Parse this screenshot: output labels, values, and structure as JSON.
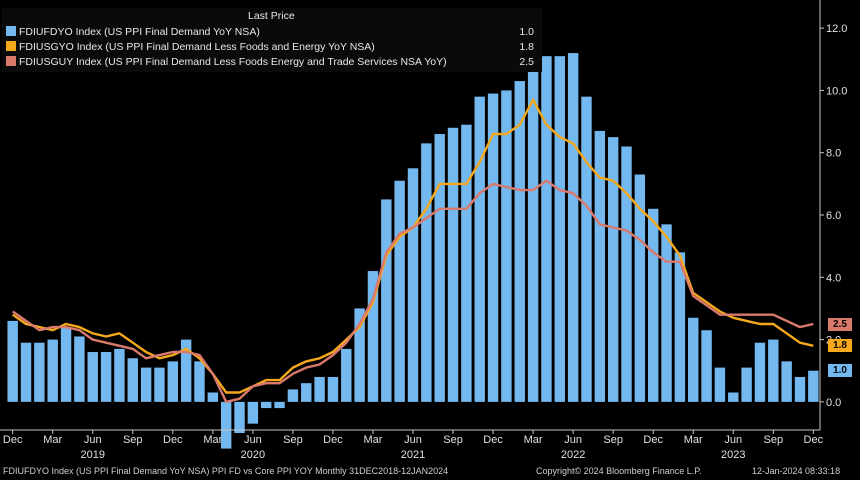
{
  "legend": {
    "header": "Last Price",
    "rows": [
      {
        "label": "FDIUFDYO Index (US PPI Final Demand YoY NSA)",
        "value": "1.0",
        "color": "#74b8f0"
      },
      {
        "label": "FDIUSGYO Index (US PPI Final Demand Less Foods and Energy YoY NSA)",
        "value": "1.8",
        "color": "#f5a81c"
      },
      {
        "label": "FDIUSGUY Index (US PPI Final Demand Less Foods Energy and Trade Services NSA YoY)",
        "value": "2.5",
        "color": "#d97a6c"
      }
    ]
  },
  "tags": [
    {
      "text": "2.5",
      "value": 2.5,
      "bg": "#d97a6c",
      "fg": "#000000"
    },
    {
      "text": "1.8",
      "value": 1.8,
      "bg": "#f5a81c",
      "fg": "#000000"
    },
    {
      "text": "1.0",
      "value": 1.0,
      "bg": "#74b8f0",
      "fg": "#000000"
    }
  ],
  "footer": {
    "left": "FDIUFDYO Index (US PPI Final Demand YoY NSA) PPI FD vs Core PPI YOY  Monthly 31DEC2018-12JAN2024",
    "center": "Copyright© 2024 Bloomberg Finance L.P.",
    "right": "12-Jan-2024 08:33:18"
  },
  "chart_data": {
    "type": "bar+line",
    "ylim": [
      -1.0,
      13.0
    ],
    "yticks": [
      "0.0",
      "2.0",
      "4.0",
      "6.0",
      "8.0",
      "10.0",
      "12.0"
    ],
    "ytick_values": [
      0,
      2,
      4,
      6,
      8,
      10,
      12
    ],
    "month_labels": [
      {
        "i": 0,
        "text": "Dec"
      },
      {
        "i": 3,
        "text": "Mar"
      },
      {
        "i": 6,
        "text": "Jun"
      },
      {
        "i": 9,
        "text": "Sep"
      },
      {
        "i": 12,
        "text": "Dec"
      },
      {
        "i": 15,
        "text": "Mar"
      },
      {
        "i": 18,
        "text": "Jun"
      },
      {
        "i": 21,
        "text": "Sep"
      },
      {
        "i": 24,
        "text": "Dec"
      },
      {
        "i": 27,
        "text": "Mar"
      },
      {
        "i": 30,
        "text": "Jun"
      },
      {
        "i": 33,
        "text": "Sep"
      },
      {
        "i": 36,
        "text": "Dec"
      },
      {
        "i": 39,
        "text": "Mar"
      },
      {
        "i": 42,
        "text": "Jun"
      },
      {
        "i": 45,
        "text": "Sep"
      },
      {
        "i": 48,
        "text": "Dec"
      },
      {
        "i": 51,
        "text": "Mar"
      },
      {
        "i": 54,
        "text": "Jun"
      },
      {
        "i": 57,
        "text": "Sep"
      },
      {
        "i": 60,
        "text": "Dec"
      }
    ],
    "year_labels": [
      {
        "i": 6,
        "text": "2019"
      },
      {
        "i": 18,
        "text": "2020"
      },
      {
        "i": 30,
        "text": "2021"
      },
      {
        "i": 42,
        "text": "2022"
      },
      {
        "i": 54,
        "text": "2023"
      }
    ],
    "series": [
      {
        "name": "FDIUFDYO Index (US PPI Final Demand YoY NSA)",
        "kind": "bar",
        "color": "#74b8f0",
        "values": [
          2.6,
          1.9,
          1.9,
          2.0,
          2.4,
          2.1,
          1.6,
          1.6,
          1.7,
          1.4,
          1.1,
          1.1,
          1.3,
          2.0,
          1.3,
          0.3,
          -1.5,
          -1.0,
          -0.7,
          -0.2,
          -0.2,
          0.4,
          0.6,
          0.8,
          0.8,
          1.7,
          3.0,
          4.2,
          6.5,
          7.1,
          7.5,
          8.3,
          8.6,
          8.8,
          8.9,
          9.8,
          9.9,
          10.0,
          10.3,
          11.5,
          11.1,
          11.1,
          11.2,
          9.8,
          8.7,
          8.5,
          8.2,
          7.3,
          6.2,
          5.7,
          4.8,
          2.7,
          2.3,
          1.1,
          0.3,
          1.1,
          1.9,
          2.0,
          1.3,
          0.8,
          1.0
        ]
      },
      {
        "name": "FDIUSGYO Index (US PPI Final Demand Less Foods and Energy YoY NSA)",
        "kind": "line",
        "color": "#f5a81c",
        "values": [
          2.8,
          2.5,
          2.4,
          2.3,
          2.5,
          2.4,
          2.2,
          2.1,
          2.2,
          1.9,
          1.6,
          1.4,
          1.5,
          1.7,
          1.4,
          0.9,
          0.3,
          0.3,
          0.5,
          0.7,
          0.7,
          1.1,
          1.3,
          1.4,
          1.6,
          2.0,
          2.4,
          3.2,
          4.7,
          5.3,
          5.6,
          6.2,
          7.0,
          7.0,
          7.0,
          7.7,
          8.6,
          8.6,
          8.9,
          9.7,
          8.9,
          8.5,
          8.3,
          7.7,
          7.2,
          7.1,
          6.7,
          6.2,
          5.8,
          5.3,
          4.7,
          3.5,
          3.2,
          2.9,
          2.7,
          2.6,
          2.5,
          2.5,
          2.2,
          1.9,
          1.8
        ]
      },
      {
        "name": "FDIUSGUY Index (US PPI Final Demand Less Foods Energy and Trade Services NSA YoY)",
        "kind": "line",
        "color": "#d97a6c",
        "values": [
          2.9,
          2.6,
          2.3,
          2.4,
          2.4,
          2.3,
          2.0,
          1.9,
          1.8,
          1.7,
          1.4,
          1.5,
          1.6,
          1.6,
          1.5,
          0.9,
          0.0,
          0.1,
          0.5,
          0.6,
          0.6,
          0.9,
          1.1,
          1.2,
          1.5,
          1.9,
          2.5,
          3.3,
          4.8,
          5.4,
          5.6,
          5.9,
          6.2,
          6.2,
          6.2,
          6.7,
          7.0,
          6.9,
          6.8,
          6.8,
          7.1,
          6.8,
          6.7,
          6.3,
          5.7,
          5.6,
          5.5,
          5.2,
          4.8,
          4.5,
          4.5,
          3.4,
          3.1,
          2.8,
          2.8,
          2.8,
          2.8,
          2.8,
          2.6,
          2.4,
          2.5
        ]
      }
    ]
  }
}
